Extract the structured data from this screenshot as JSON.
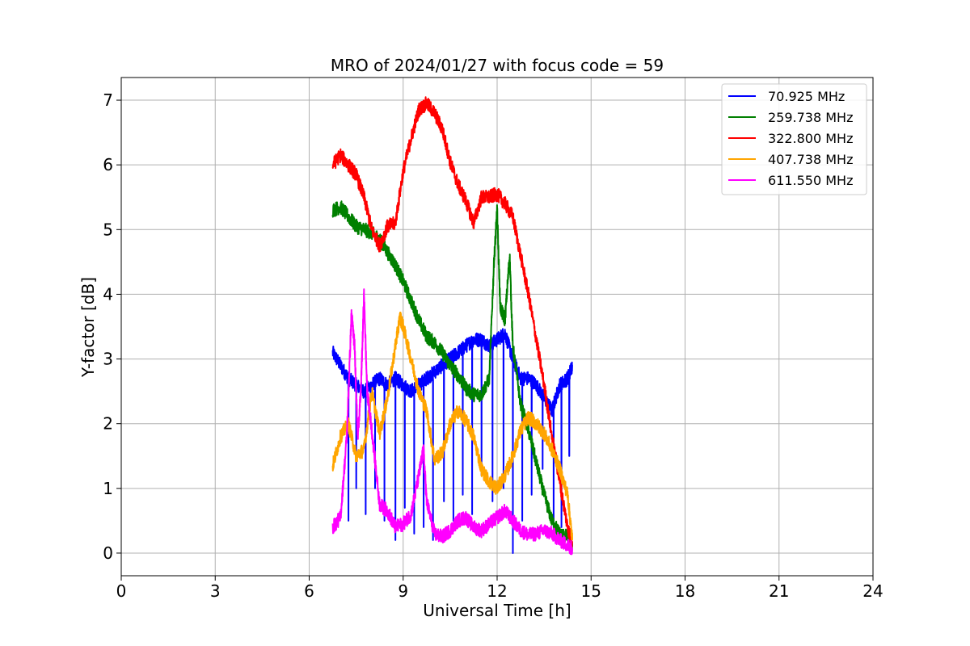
{
  "chart_data": {
    "type": "line",
    "title": "MRO of 2024/01/27 with focus code = 59",
    "xlabel": "Universal Time [h]",
    "ylabel": "Y-factor [dB]",
    "xlim": [
      0,
      24
    ],
    "ylim": [
      -0.35,
      7.35
    ],
    "xticks": [
      0,
      3,
      6,
      9,
      12,
      15,
      18,
      21,
      24
    ],
    "yticks": [
      0,
      1,
      2,
      3,
      4,
      5,
      6,
      7
    ],
    "grid": true,
    "legend_position": "top-right",
    "series": [
      {
        "name": " 70.925 MHz",
        "color": "#0000ff",
        "x": [
          6.75,
          7.0,
          7.25,
          7.5,
          7.75,
          8.0,
          8.25,
          8.5,
          8.75,
          9.0,
          9.25,
          9.5,
          9.75,
          10.0,
          10.25,
          10.5,
          10.75,
          11.0,
          11.25,
          11.5,
          11.75,
          12.0,
          12.25,
          12.5,
          12.75,
          13.0,
          13.25,
          13.5,
          13.75,
          14.0,
          14.25,
          14.4
        ],
        "y": [
          3.1,
          2.9,
          2.7,
          2.6,
          2.5,
          2.6,
          2.7,
          2.6,
          2.7,
          2.6,
          2.5,
          2.6,
          2.7,
          2.8,
          2.9,
          3.0,
          3.1,
          3.2,
          3.3,
          3.3,
          3.2,
          3.3,
          3.4,
          3.0,
          2.7,
          2.7,
          2.6,
          2.4,
          2.2,
          2.6,
          2.7,
          2.9
        ],
        "dips": [
          [
            7.25,
            0.5
          ],
          [
            7.5,
            1.0
          ],
          [
            7.8,
            0.6
          ],
          [
            8.1,
            1.0
          ],
          [
            8.4,
            0.5
          ],
          [
            8.75,
            0.2
          ],
          [
            9.05,
            0.7
          ],
          [
            9.35,
            0.3
          ],
          [
            9.65,
            0.4
          ],
          [
            9.95,
            0.2
          ],
          [
            10.3,
            0.8
          ],
          [
            10.6,
            0.5
          ],
          [
            10.9,
            0.9
          ],
          [
            11.2,
            0.6
          ],
          [
            11.5,
            1.2
          ],
          [
            11.85,
            0.8
          ],
          [
            12.2,
            1.0
          ],
          [
            12.5,
            0.0
          ],
          [
            12.8,
            0.5
          ],
          [
            13.1,
            0.9
          ],
          [
            13.45,
            1.3
          ],
          [
            13.8,
            0.2
          ],
          [
            14.05,
            0.4
          ],
          [
            14.3,
            1.5
          ]
        ]
      },
      {
        "name": "259.738 MHz",
        "color": "#008000",
        "x": [
          6.75,
          7.0,
          7.25,
          7.5,
          7.75,
          8.0,
          8.25,
          8.5,
          8.75,
          9.0,
          9.25,
          9.5,
          9.75,
          10.0,
          10.25,
          10.5,
          10.75,
          11.0,
          11.25,
          11.5,
          11.75,
          11.9,
          12.0,
          12.1,
          12.25,
          12.4,
          12.5,
          12.75,
          13.0,
          13.25,
          13.5,
          13.75,
          14.0,
          14.25,
          14.4
        ],
        "y": [
          5.3,
          5.35,
          5.2,
          5.05,
          5.0,
          4.95,
          4.85,
          4.65,
          4.45,
          4.2,
          3.9,
          3.6,
          3.35,
          3.25,
          3.1,
          2.9,
          2.75,
          2.55,
          2.45,
          2.45,
          2.7,
          4.5,
          5.3,
          3.8,
          3.6,
          4.6,
          3.2,
          2.3,
          1.9,
          1.4,
          0.9,
          0.5,
          0.3,
          0.25,
          0.1
        ]
      },
      {
        "name": "322.800 MHz",
        "color": "#ff0000",
        "x": [
          6.75,
          7.0,
          7.25,
          7.5,
          7.75,
          8.0,
          8.25,
          8.5,
          8.75,
          9.0,
          9.25,
          9.5,
          9.75,
          10.0,
          10.25,
          10.5,
          10.75,
          11.0,
          11.25,
          11.5,
          11.75,
          12.0,
          12.25,
          12.5,
          12.75,
          13.0,
          13.25,
          13.5,
          13.75,
          14.0,
          14.25,
          14.4
        ],
        "y": [
          6.0,
          6.15,
          6.0,
          5.85,
          5.5,
          5.0,
          4.75,
          5.05,
          5.1,
          5.9,
          6.4,
          6.85,
          6.95,
          6.8,
          6.55,
          6.05,
          5.7,
          5.45,
          5.1,
          5.5,
          5.5,
          5.55,
          5.4,
          5.2,
          4.6,
          4.0,
          3.3,
          2.6,
          1.8,
          1.1,
          0.4,
          0.15
        ]
      },
      {
        "name": "407.738 MHz",
        "color": "#ffa500",
        "x": [
          6.75,
          7.0,
          7.25,
          7.5,
          7.75,
          8.0,
          8.25,
          8.5,
          8.75,
          8.9,
          9.0,
          9.25,
          9.5,
          9.75,
          10.0,
          10.25,
          10.5,
          10.75,
          11.0,
          11.25,
          11.5,
          11.75,
          12.0,
          12.25,
          12.5,
          12.75,
          13.0,
          13.25,
          13.5,
          13.75,
          14.0,
          14.25,
          14.4
        ],
        "y": [
          1.35,
          1.8,
          2.0,
          1.5,
          1.6,
          2.5,
          1.85,
          2.4,
          3.2,
          3.65,
          3.5,
          3.0,
          2.5,
          2.2,
          1.45,
          1.55,
          2.0,
          2.2,
          2.05,
          1.8,
          1.3,
          1.1,
          1.0,
          1.2,
          1.5,
          1.9,
          2.1,
          2.0,
          1.85,
          1.6,
          1.3,
          0.9,
          0.2
        ]
      },
      {
        "name": "611.550 MHz",
        "color": "#ff00ff",
        "x": [
          6.75,
          7.0,
          7.2,
          7.35,
          7.45,
          7.55,
          7.65,
          7.75,
          7.85,
          8.0,
          8.25,
          8.5,
          8.75,
          9.0,
          9.25,
          9.5,
          9.65,
          9.75,
          10.0,
          10.25,
          10.5,
          10.75,
          11.0,
          11.25,
          11.5,
          11.75,
          12.0,
          12.25,
          12.5,
          12.75,
          13.0,
          13.25,
          13.5,
          13.75,
          14.0,
          14.25,
          14.4
        ],
        "y": [
          0.4,
          0.55,
          1.8,
          3.7,
          3.2,
          1.8,
          2.5,
          4.0,
          2.5,
          1.9,
          0.75,
          0.65,
          0.4,
          0.45,
          0.6,
          1.2,
          1.6,
          0.8,
          0.3,
          0.25,
          0.35,
          0.5,
          0.55,
          0.4,
          0.35,
          0.45,
          0.55,
          0.65,
          0.5,
          0.35,
          0.28,
          0.3,
          0.35,
          0.3,
          0.2,
          0.12,
          0.08
        ]
      }
    ]
  }
}
